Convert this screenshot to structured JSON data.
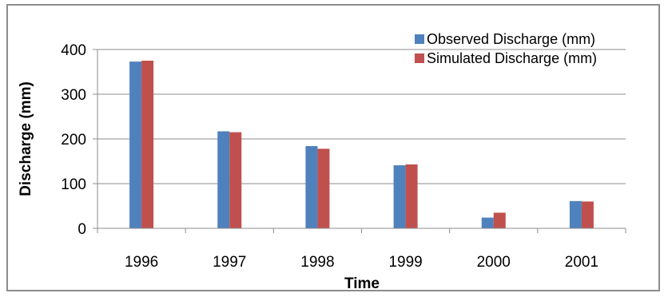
{
  "chart_data": {
    "type": "bar",
    "title": "",
    "xlabel": "Time",
    "ylabel": "Discharge (mm)",
    "categories": [
      "1996",
      "1997",
      "1998",
      "1999",
      "2000",
      "2001"
    ],
    "series": [
      {
        "name": "Observed Discharge (mm)",
        "color": "#4f81bd",
        "values": [
          373,
          217,
          184,
          141,
          24,
          61
        ]
      },
      {
        "name": "Simulated Discharge (mm)",
        "color": "#c0504d",
        "values": [
          375,
          215,
          178,
          143,
          35,
          60
        ]
      }
    ],
    "ylim": [
      0,
      400
    ],
    "yticks": [
      0,
      100,
      200,
      300,
      400
    ],
    "grid": true,
    "legend": "top-right"
  }
}
